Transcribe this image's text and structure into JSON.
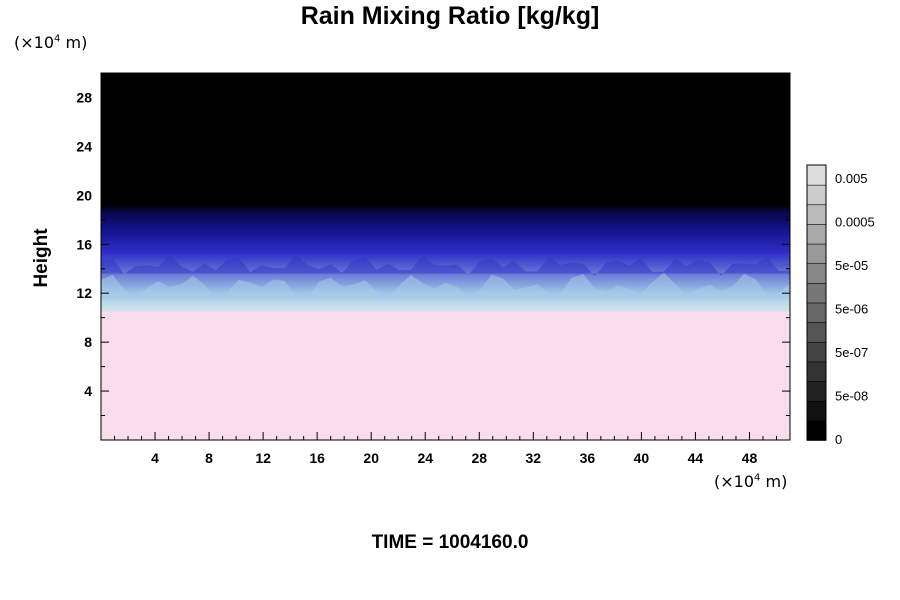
{
  "chart_data": {
    "type": "heatmap",
    "title": "Rain Mixing Ratio [kg/kg]",
    "ylabel": "Height",
    "y_unit_prefix": "(×10",
    "y_unit_exp": "4",
    "y_unit_suffix": " m)",
    "x_unit_prefix": "(×10",
    "x_unit_exp": "4",
    "x_unit_suffix": " m)",
    "footer": "TIME = 1004160.0",
    "xlim": [
      0,
      51
    ],
    "ylim": [
      0,
      30
    ],
    "x_ticks": [
      "4",
      "8",
      "12",
      "16",
      "20",
      "24",
      "28",
      "32",
      "36",
      "40",
      "44",
      "48"
    ],
    "y_ticks": [
      "4",
      "8",
      "12",
      "16",
      "20",
      "24",
      "28"
    ],
    "colorbar": {
      "labels": [
        "0.005",
        "0.0005",
        "5e-05",
        "5e-06",
        "5e-07",
        "5e-08",
        "0"
      ],
      "levels": 13,
      "colors": [
        "#000000",
        "#111111",
        "#222222",
        "#333333",
        "#444444",
        "#555555",
        "#666666",
        "#777777",
        "#888888",
        "#999999",
        "#aaaaaa",
        "#bbbbbb",
        "#cccccc",
        "#dddddd"
      ]
    },
    "field_description_layers": [
      {
        "from_height": 0,
        "to_height": 10.5,
        "color": "#fbdcec"
      },
      {
        "from_height": 10.5,
        "to_height": 12,
        "color": "#b8d8ea"
      },
      {
        "from_height": 12,
        "to_height": 14,
        "color": "#8aa4dc"
      },
      {
        "from_height": 14,
        "to_height": 16,
        "color": "#3a3ed0"
      },
      {
        "from_height": 16,
        "to_height": 18.5,
        "color": "#10128a"
      },
      {
        "from_height": 18.5,
        "to_height": 30,
        "color": "#000000"
      }
    ]
  }
}
